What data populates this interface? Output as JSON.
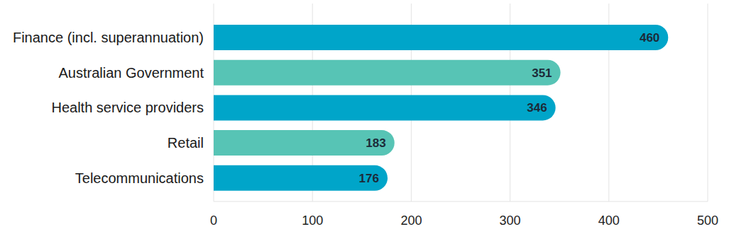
{
  "chart_data": {
    "type": "bar",
    "orientation": "horizontal",
    "categories": [
      "Finance (incl. superannuation)",
      "Australian Government",
      "Health service providers",
      "Retail",
      "Telecommunications"
    ],
    "values": [
      460,
      351,
      346,
      183,
      176
    ],
    "colors": [
      "#00a5c9",
      "#57c4b5",
      "#00a5c9",
      "#57c4b5",
      "#00a5c9"
    ],
    "xlim": [
      0,
      500
    ],
    "xticks": [
      0,
      100,
      200,
      300,
      400,
      500
    ],
    "grid": true,
    "data_labels": true
  }
}
